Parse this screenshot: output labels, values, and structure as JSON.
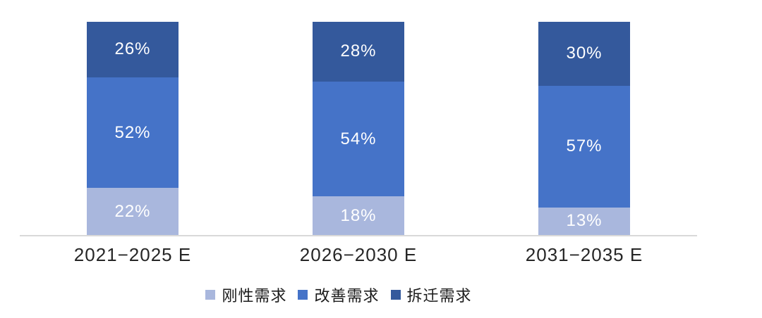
{
  "chart_data": {
    "type": "bar",
    "variant": "stacked-100-percent",
    "title": "",
    "xlabel": "",
    "ylabel": "",
    "ylim": [
      0,
      100
    ],
    "grid": false,
    "legend_position": "bottom",
    "axis_line_color": "#d9d9d9",
    "data_label_color": "#ffffff",
    "categories": [
      "2021−2025 E",
      "2026−2030 E",
      "2031−2035 E"
    ],
    "series": [
      {
        "name": "刚性需求",
        "color": "#a9b7dd",
        "values": [
          22,
          18,
          13
        ],
        "labels": [
          "22%",
          "18%",
          "13%"
        ]
      },
      {
        "name": "改善需求",
        "color": "#4573c8",
        "values": [
          52,
          54,
          57
        ],
        "labels": [
          "52%",
          "54%",
          "57%"
        ]
      },
      {
        "name": "拆迁需求",
        "color": "#34599c",
        "values": [
          26,
          28,
          30
        ],
        "labels": [
          "26%",
          "28%",
          "30%"
        ]
      }
    ]
  }
}
